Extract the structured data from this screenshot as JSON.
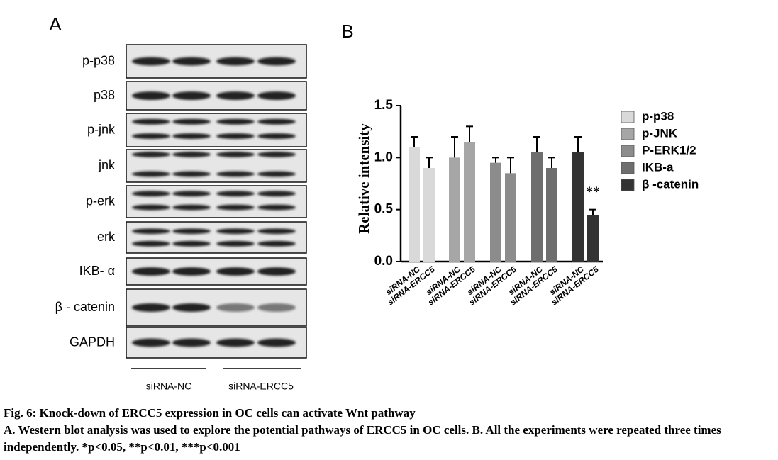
{
  "panel_a": {
    "label": "A",
    "rows": [
      "p-p38",
      "p38",
      "p-jnk",
      "jnk",
      "p-erk",
      "erk",
      "IKB- α",
      "β - catenin",
      "GAPDH"
    ],
    "lanes": [
      "siRNA-NC",
      "siRNA-ERCC5"
    ]
  },
  "chart_data": {
    "type": "bar",
    "panel_label": "B",
    "y_label": "Relative intensity",
    "categories": [
      "siRNA-NC",
      "siRNA-ERCC5"
    ],
    "series": [
      {
        "name": "p-p38",
        "color": "#d9d9d9",
        "values": [
          1.1,
          0.9
        ],
        "errors": [
          0.1,
          0.1
        ]
      },
      {
        "name": "p-JNK",
        "color": "#a6a6a6",
        "values": [
          1.0,
          1.15
        ],
        "errors": [
          0.2,
          0.15
        ]
      },
      {
        "name": "P-ERK1/2",
        "color": "#8c8c8c",
        "values": [
          0.95,
          0.85
        ],
        "errors": [
          0.05,
          0.15
        ]
      },
      {
        "name": "IKB-a",
        "color": "#6e6e6e",
        "values": [
          1.05,
          0.9
        ],
        "errors": [
          0.15,
          0.1
        ]
      },
      {
        "name": "β -catenin",
        "color": "#333333",
        "values": [
          1.05,
          0.45
        ],
        "errors": [
          0.15,
          0.05
        ],
        "significance": [
          null,
          "**"
        ]
      }
    ],
    "ylim": [
      0,
      1.5
    ],
    "yticks": [
      {
        "value": 0,
        "label": "0.0"
      },
      {
        "value": 0.5,
        "label": "0.5"
      },
      {
        "value": 1,
        "label": "1.0"
      },
      {
        "value": 1.5,
        "label": "1.5"
      }
    ],
    "legend": "right"
  },
  "caption": {
    "title": "Fig. 6: Knock-down of ERCC5 expression in OC cells can activate Wnt pathway",
    "text": "A. Western blot analysis was used to explore the potential pathways of ERCC5 in OC cells. B. All the experiments were repeated three times independently. *p<0.05, **p<0.01, ***p<0.001"
  }
}
